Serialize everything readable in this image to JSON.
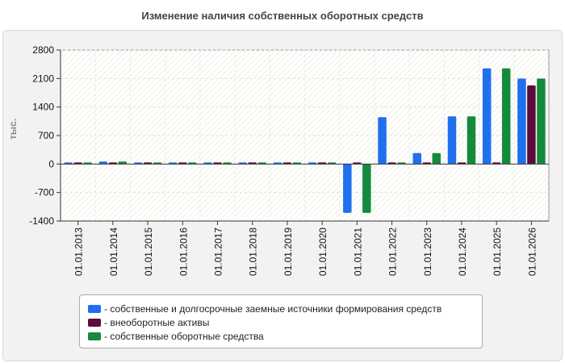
{
  "chart_data": {
    "type": "bar",
    "title": "Изменение наличия собственных оборотных средств",
    "ylabel": "тыс.",
    "xlabel": "",
    "ylim": [
      -1400,
      2800
    ],
    "yticks": [
      "2800",
      "2100",
      "1400",
      "700",
      "0",
      "-700",
      "-1400"
    ],
    "yticks_values": [
      2800,
      2100,
      1400,
      700,
      0,
      -700,
      -1400
    ],
    "categories": [
      "01.01.2013",
      "01.01.2014",
      "01.01.2015",
      "01.01.2016",
      "01.01.2017",
      "01.01.2018",
      "01.01.2019",
      "01.01.2020",
      "01.01.2021",
      "01.01.2022",
      "01.01.2023",
      "01.01.2024",
      "01.01.2025",
      "01.01.2026"
    ],
    "grid": true,
    "legend_position": "bottom",
    "series": [
      {
        "name": "- собственные и долгосрочные заемные источники формирования средств",
        "color": "#1f6fef",
        "values": [
          20,
          60,
          40,
          20,
          20,
          20,
          20,
          20,
          -1200,
          1150,
          270,
          1170,
          2350,
          2100
        ]
      },
      {
        "name": "- внеоборотные активы",
        "color": "#5c0b3a",
        "values": [
          15,
          20,
          15,
          15,
          15,
          15,
          15,
          15,
          15,
          15,
          15,
          15,
          15,
          1930
        ]
      },
      {
        "name": "- собственные оборотные средства",
        "color": "#148a3c",
        "values": [
          10,
          60,
          40,
          20,
          20,
          20,
          20,
          20,
          -1200,
          20,
          270,
          1170,
          2350,
          2100
        ]
      }
    ]
  }
}
